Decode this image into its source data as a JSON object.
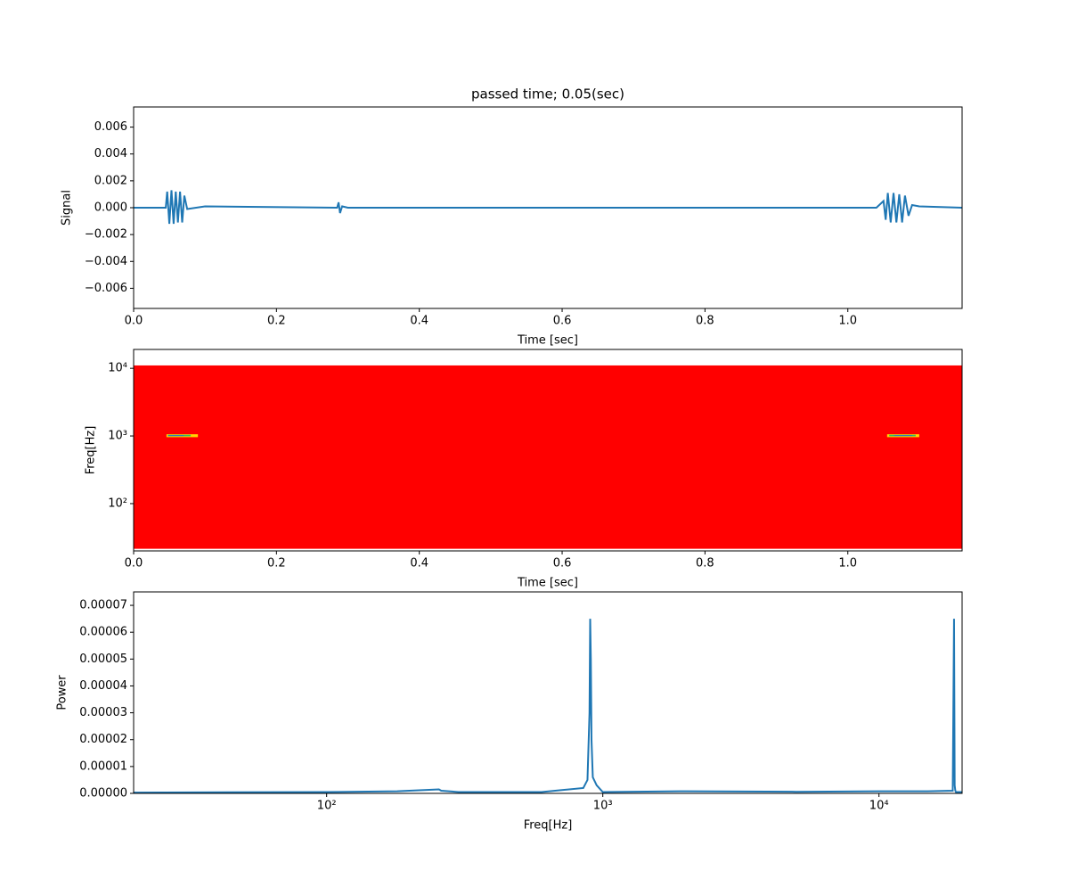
{
  "chart_data": [
    {
      "type": "line",
      "title": "passed time; 0.05(sec)",
      "xlabel": "Time [sec]",
      "ylabel": "Signal",
      "xlim": [
        0,
        1.16
      ],
      "ylim": [
        -0.0075,
        0.0075
      ],
      "xticks": [
        {
          "value": 0,
          "label": "0.0"
        },
        0.2,
        0.4,
        0.6,
        0.8,
        {
          "value": 1,
          "label": "1.0"
        }
      ],
      "yticks": [
        {
          "value": -0.006,
          "label": "−0.006"
        },
        {
          "value": -0.004,
          "label": "−0.004"
        },
        {
          "value": -0.002,
          "label": "−0.002"
        },
        {
          "value": 0,
          "label": "0.000"
        },
        0.002,
        0.004,
        0.006
      ],
      "series": [
        {
          "color": "#1f77b4",
          "x": [
            0,
            0.045,
            0.047,
            0.05,
            0.053,
            0.056,
            0.059,
            0.062,
            0.065,
            0.068,
            0.071,
            0.075,
            0.1,
            0.285,
            0.287,
            0.289,
            0.292,
            0.3,
            1.04,
            1.05,
            1.053,
            1.056,
            1.06,
            1.064,
            1.068,
            1.072,
            1.076,
            1.08,
            1.085,
            1.09,
            1.1,
            1.16
          ],
          "values": [
            0,
            0,
            0.0012,
            -0.0012,
            0.0013,
            -0.0012,
            0.0012,
            -0.0011,
            0.0012,
            -0.0011,
            0.0009,
            -0.0001,
            0.0001,
            0,
            0.0004,
            -0.0004,
            0.0001,
            0,
            0,
            0.0005,
            -0.0009,
            0.0011,
            -0.0011,
            0.0011,
            -0.0011,
            0.001,
            -0.0011,
            0.0009,
            -0.0006,
            0.0002,
            0.0001,
            0
          ]
        }
      ]
    },
    {
      "type": "spectrogram",
      "xlabel": "Time [sec]",
      "ylabel": "Freq[Hz]",
      "ylog": true,
      "xlim": [
        0,
        1.16
      ],
      "ylim": [
        20,
        19000
      ],
      "xticks": [
        {
          "value": 0,
          "label": "0.0"
        },
        0.2,
        0.4,
        0.6,
        0.8,
        {
          "value": 1,
          "label": "1.0"
        }
      ],
      "yticks": [
        {
          "value": 100,
          "label": "10²"
        },
        {
          "value": 1000,
          "label": "10³"
        },
        {
          "value": 10000,
          "label": "10⁴"
        }
      ],
      "time_range": [
        0,
        1.16
      ],
      "freq_range": [
        21.5,
        11025
      ],
      "color": "#ff0000",
      "highlights": [
        {
          "t": [
            0.046,
            0.09
          ],
          "f": [
            960,
            1060
          ],
          "color": "#ffd700"
        },
        {
          "t": [
            0.048,
            0.08
          ],
          "f": [
            990,
            1040
          ],
          "color": "#30c060"
        },
        {
          "t": [
            0.048,
            0.07
          ],
          "f": [
            1000,
            1020
          ],
          "color": "#3050ff"
        },
        {
          "t": [
            1.055,
            1.1
          ],
          "f": [
            960,
            1060
          ],
          "color": "#ffd700"
        },
        {
          "t": [
            1.058,
            1.095
          ],
          "f": [
            990,
            1040
          ],
          "color": "#30c060"
        },
        {
          "t": [
            1.065,
            1.09
          ],
          "f": [
            1000,
            1020
          ],
          "color": "#3050ff"
        }
      ]
    },
    {
      "type": "line",
      "xlabel": "Freq[Hz]",
      "ylabel": "Power",
      "xlog": true,
      "xlim": [
        20,
        20000
      ],
      "ylim": [
        0,
        7.5e-05
      ],
      "xticks": [
        {
          "value": 100,
          "label": "10²"
        },
        {
          "value": 1000,
          "label": "10³"
        },
        {
          "value": 10000,
          "label": "10⁴"
        }
      ],
      "yticks": [
        {
          "value": 0,
          "label": "0.00000"
        },
        {
          "value": 1e-05,
          "label": "0.00001"
        },
        {
          "value": 2e-05,
          "label": "0.00002"
        },
        {
          "value": 3e-05,
          "label": "0.00003"
        },
        {
          "value": 4e-05,
          "label": "0.00004"
        },
        {
          "value": 5e-05,
          "label": "0.00005"
        },
        {
          "value": 6e-05,
          "label": "0.00006"
        },
        {
          "value": 7e-05,
          "label": "0.00007"
        }
      ],
      "series": [
        {
          "color": "#1f77b4",
          "x": [
            20,
            100,
            180,
            255,
            260,
            300,
            600,
            850,
            880,
            895,
            900,
            905,
            910,
            920,
            950,
            1000,
            2000,
            5000,
            10000,
            15000,
            18500,
            18700,
            18800,
            18900,
            19000,
            20000
          ],
          "values": [
            3e-07,
            5e-07,
            8e-07,
            1.5e-06,
            1e-06,
            5e-07,
            5e-07,
            2e-06,
            5e-06,
            3e-05,
            6.5e-05,
            5e-05,
            2e-05,
            6e-06,
            3e-06,
            5e-07,
            8e-07,
            6e-07,
            8e-07,
            8e-07,
            1e-06,
            6.5e-05,
            3e-06,
            1e-06,
            5e-07,
            5e-07
          ]
        }
      ]
    }
  ]
}
